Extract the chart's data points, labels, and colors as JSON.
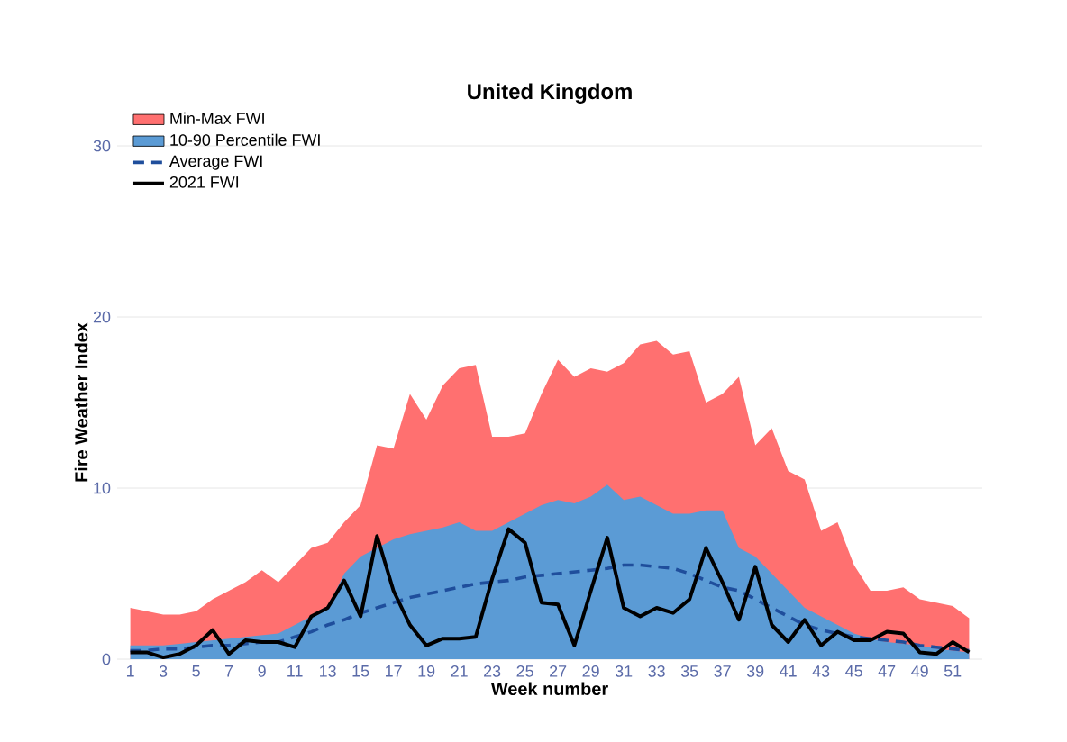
{
  "chart_data": {
    "type": "line",
    "title": "United Kingdom",
    "xlabel": "Week number",
    "ylabel": "Fire Weather Index",
    "categories": [
      "1",
      null,
      "3",
      null,
      "5",
      null,
      "7",
      null,
      "9",
      null,
      "11",
      null,
      "13",
      null,
      "15",
      null,
      "17",
      null,
      "19",
      null,
      "21",
      null,
      "23",
      null,
      "25",
      null,
      "27",
      null,
      "29",
      null,
      "31",
      null,
      "33",
      null,
      "35",
      null,
      "37",
      null,
      "39",
      null,
      "41",
      null,
      "43",
      null,
      "45",
      null,
      "47",
      null,
      "49",
      null,
      "51",
      null
    ],
    "series": [
      {
        "name": "Min-Max FWI",
        "type": "area",
        "color": "#ff7070",
        "values": [
          3,
          2.8,
          2.6,
          2.6,
          2.8,
          3.5,
          4,
          4.5,
          5.2,
          4.5,
          5.5,
          6.5,
          6.8,
          8,
          9,
          12.5,
          12.3,
          15.5,
          14,
          16,
          17,
          17.2,
          13,
          13,
          13.2,
          15.5,
          17.5,
          16.5,
          17,
          16.8,
          17.3,
          18.4,
          18.6,
          17.8,
          18,
          15,
          15.5,
          16.5,
          12.5,
          13.5,
          11,
          10.5,
          7.5,
          8,
          5.5,
          4,
          4,
          4.2,
          3.5,
          3.3,
          3.1,
          2.4
        ]
      },
      {
        "name": "10-90 Percentile FWI",
        "type": "area",
        "color": "#5b9bd5",
        "values": [
          0.8,
          0.8,
          0.8,
          0.9,
          1,
          1.1,
          1.2,
          1.3,
          1.4,
          1.5,
          2,
          2.5,
          3,
          5,
          6,
          6.5,
          7,
          7.3,
          7.5,
          7.7,
          8,
          7.5,
          7.5,
          8,
          8.5,
          9,
          9.3,
          9.1,
          9.5,
          10.2,
          9.3,
          9.5,
          9,
          8.5,
          8.5,
          8.7,
          8.7,
          6.5,
          6,
          5,
          4,
          3,
          2.5,
          2,
          1.5,
          1.2,
          1,
          0.9,
          0.8,
          0.6,
          0.5,
          0.4
        ]
      },
      {
        "name": "Average FWI",
        "line_style": "dashed",
        "color": "#1f4e9c",
        "values": [
          0.5,
          0.5,
          0.6,
          0.6,
          0.7,
          0.8,
          0.8,
          0.9,
          1,
          1,
          1.3,
          1.6,
          2,
          2.3,
          2.7,
          3,
          3.3,
          3.6,
          3.8,
          4,
          4.2,
          4.4,
          4.5,
          4.6,
          4.8,
          4.9,
          5,
          5.1,
          5.2,
          5.3,
          5.5,
          5.5,
          5.4,
          5.3,
          5,
          4.6,
          4.2,
          4,
          3.5,
          3,
          2.5,
          2,
          1.7,
          1.5,
          1.3,
          1.2,
          1.1,
          1,
          0.8,
          0.7,
          0.6,
          0.5
        ]
      },
      {
        "name": "2021 FWI",
        "line_style": "solid",
        "color": "#000000",
        "values": [
          0.4,
          0.4,
          0.1,
          0.3,
          0.8,
          1.7,
          0.3,
          1.1,
          1,
          1,
          0.7,
          2.5,
          3,
          4.6,
          2.5,
          7.2,
          4,
          2,
          0.8,
          1.2,
          1.2,
          1.3,
          4.7,
          7.6,
          6.8,
          3.3,
          3.2,
          0.8,
          4,
          7.1,
          3,
          2.5,
          3,
          2.7,
          3.5,
          6.5,
          4.5,
          2.3,
          5.4,
          2,
          1,
          2.3,
          0.8,
          1.6,
          1.1,
          1.1,
          1.6,
          1.5,
          0.4,
          0.3,
          1,
          0.4
        ]
      }
    ],
    "ylim": [
      0,
      30
    ],
    "yticks": [
      0,
      10,
      20,
      30
    ],
    "grid": "y",
    "legend": "top left"
  }
}
